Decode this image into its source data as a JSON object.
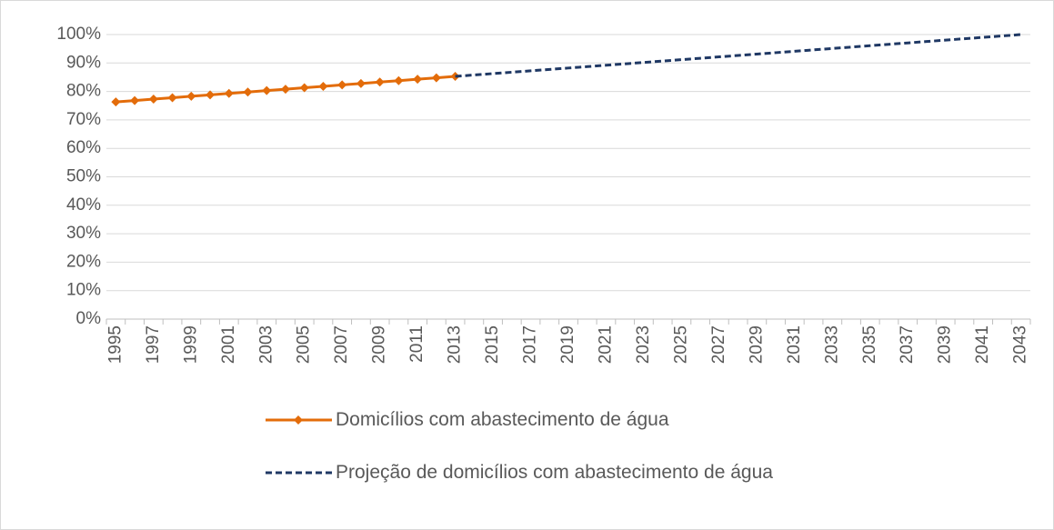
{
  "chart_data": {
    "type": "line",
    "categories": [
      "1995",
      null,
      "1997",
      null,
      "1999",
      null,
      "2001",
      null,
      "2003",
      null,
      "2005",
      null,
      "2007",
      null,
      "2009",
      null,
      "2011",
      null,
      "2013",
      null,
      "2015",
      null,
      "2017",
      null,
      "2019",
      null,
      "2021",
      null,
      "2023",
      null,
      "2025",
      null,
      "2027",
      null,
      "2029",
      null,
      "2031",
      null,
      "2033",
      null,
      "2035",
      null,
      "2037",
      null,
      "2039",
      null,
      "2041",
      null,
      "2043"
    ],
    "series": [
      {
        "name": "Domicílios com abastecimento de água",
        "color": "#e36c0a",
        "marker": "diamond",
        "dash": false,
        "values": [
          76.3,
          76.8,
          77.3,
          77.8,
          78.3,
          78.8,
          79.3,
          79.8,
          80.3,
          80.8,
          81.3,
          81.8,
          82.3,
          82.8,
          83.3,
          83.8,
          84.3,
          84.8,
          85.3,
          null,
          null,
          null,
          null,
          null,
          null,
          null,
          null,
          null,
          null,
          null,
          null,
          null,
          null,
          null,
          null,
          null,
          null,
          null,
          null,
          null,
          null,
          null,
          null,
          null,
          null,
          null,
          null,
          null,
          null
        ]
      },
      {
        "name": "Projeção de domicílios com abastecimento de água",
        "color": "#1f3864",
        "marker": "none",
        "dash": true,
        "values": [
          null,
          null,
          null,
          null,
          null,
          null,
          null,
          null,
          null,
          null,
          null,
          null,
          null,
          null,
          null,
          null,
          null,
          null,
          85.3,
          85.79,
          86.28,
          86.77,
          87.26,
          87.75,
          88.24,
          88.73,
          89.22,
          89.71,
          90.2,
          90.69,
          91.18,
          91.67,
          92.16,
          92.65,
          93.14,
          93.63,
          94.12,
          94.61,
          95.1,
          95.59,
          96.08,
          96.57,
          97.06,
          97.55,
          98.04,
          98.53,
          99.02,
          99.51,
          100.0
        ]
      }
    ],
    "ylim": [
      0,
      100
    ],
    "yticks": [
      {
        "value": 0,
        "label": "0%"
      },
      {
        "value": 10,
        "label": "10%"
      },
      {
        "value": 20,
        "label": "20%"
      },
      {
        "value": 30,
        "label": "30%"
      },
      {
        "value": 40,
        "label": "40%"
      },
      {
        "value": 50,
        "label": "50%"
      },
      {
        "value": 60,
        "label": "60%"
      },
      {
        "value": 70,
        "label": "70%"
      },
      {
        "value": 80,
        "label": "80%"
      },
      {
        "value": 90,
        "label": "90%"
      },
      {
        "value": 100,
        "label": "100%"
      }
    ],
    "grid": true,
    "legend": "bottom"
  }
}
